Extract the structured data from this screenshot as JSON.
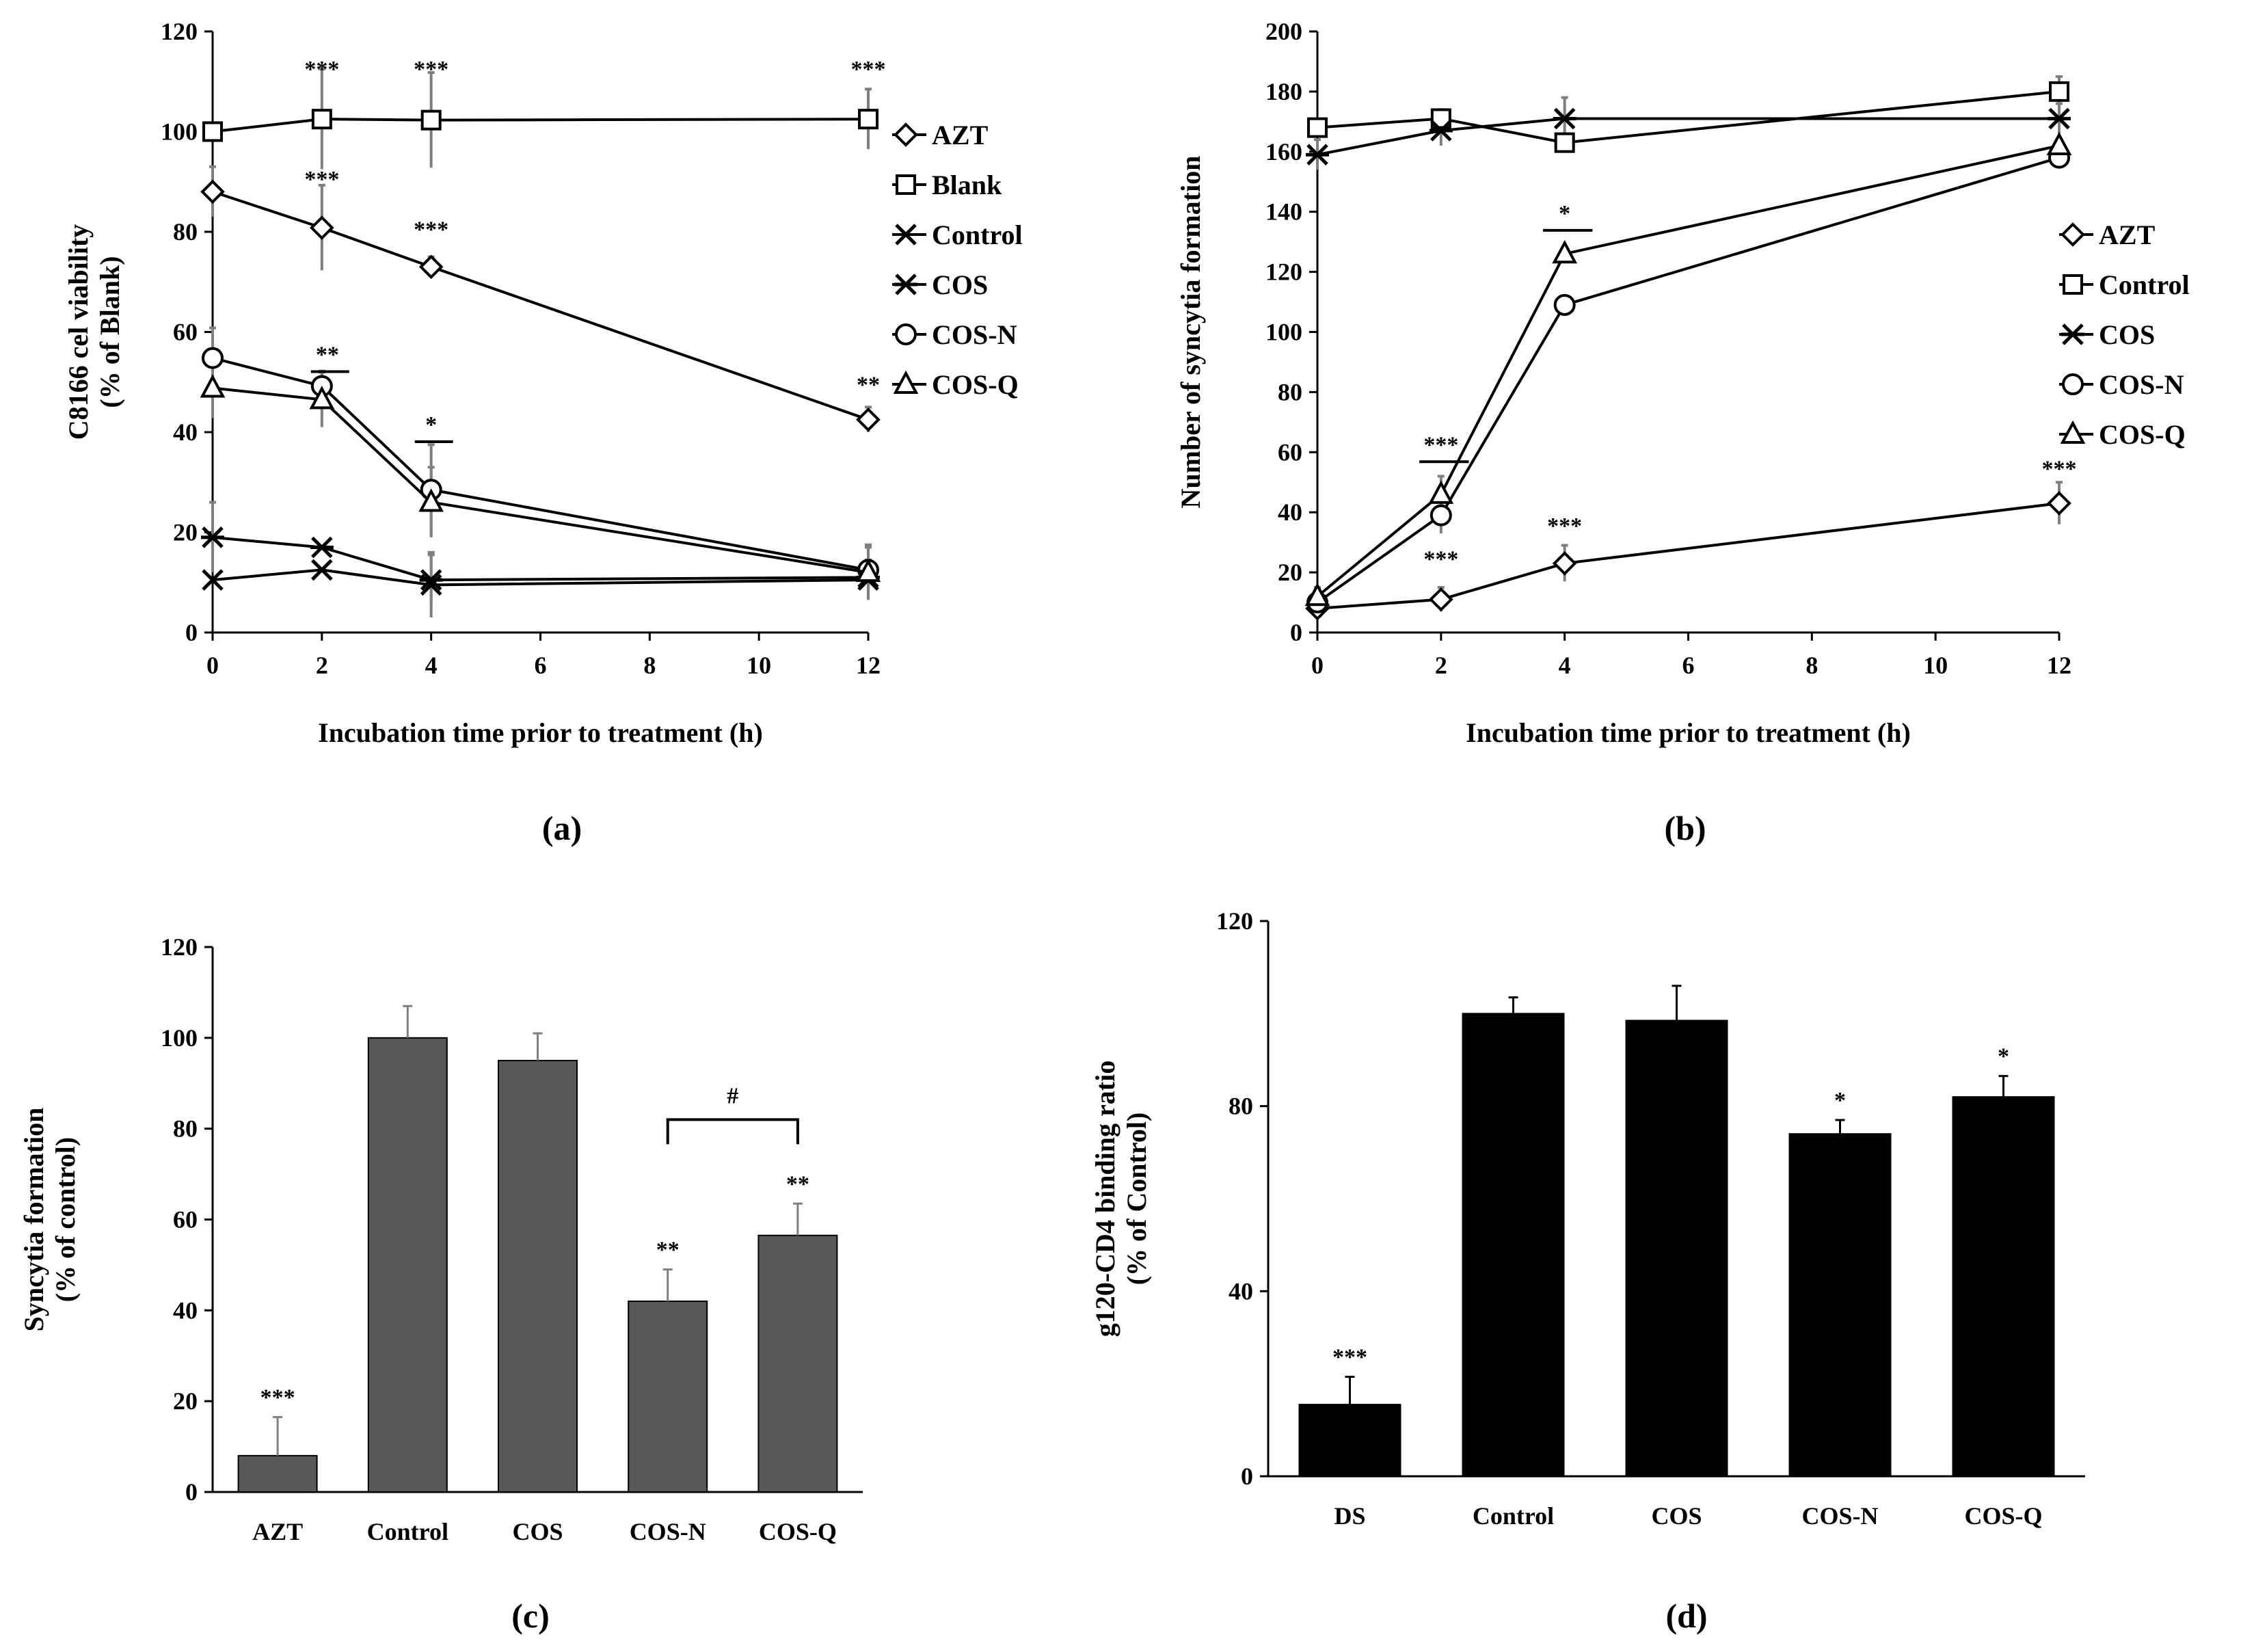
{
  "figure": {
    "colors": {
      "ink": "#000000",
      "bar_gray": "#595959",
      "bar_black": "#000000",
      "error_bar": "#7f7f7f"
    }
  },
  "chart_data": [
    {
      "id": "a",
      "panel_label": "(a)",
      "type": "line",
      "xlabel": "Incubation time prior to treatment (h)",
      "ylabel_lines": [
        "C8166 cel viability",
        "(% of Blank)"
      ],
      "xlim": [
        0,
        12
      ],
      "ylim": [
        0,
        120
      ],
      "xticks": [
        0,
        2,
        4,
        6,
        8,
        10,
        12
      ],
      "yticks": [
        0,
        20,
        40,
        60,
        80,
        100,
        120
      ],
      "x": [
        0,
        2,
        4,
        12
      ],
      "legend_position": "right",
      "series": [
        {
          "name": "AZT",
          "marker": "diamond",
          "values": [
            88,
            80.8,
            73,
            42.5
          ],
          "errors": [
            5,
            8.5,
            2,
            2.5
          ]
        },
        {
          "name": "Blank",
          "marker": "square",
          "values": [
            100,
            102.5,
            102.3,
            102.5
          ],
          "errors": [
            0,
            10,
            9.5,
            6
          ]
        },
        {
          "name": "Control",
          "marker": "x",
          "values": [
            10.5,
            12.5,
            9.5,
            10.5
          ],
          "errors": [
            0,
            0,
            6.5,
            4
          ]
        },
        {
          "name": "COS",
          "marker": "asterisk",
          "values": [
            19,
            17,
            10.5,
            11
          ],
          "errors": [
            7,
            0,
            5,
            3
          ]
        },
        {
          "name": "COS-N",
          "marker": "circle",
          "values": [
            54.8,
            49.2,
            28.5,
            12.5
          ],
          "errors": [
            6,
            3,
            9,
            5
          ]
        },
        {
          "name": "COS-Q",
          "marker": "triangle",
          "values": [
            48.8,
            46.5,
            26,
            12
          ],
          "errors": [
            6,
            5.5,
            7,
            5
          ]
        }
      ],
      "annotations": [
        {
          "text": "***",
          "x": 2,
          "y": 111,
          "bar": false
        },
        {
          "text": "***",
          "x": 4,
          "y": 111,
          "bar": false
        },
        {
          "text": "***",
          "x": 12,
          "y": 111,
          "bar": false
        },
        {
          "text": "***",
          "x": 2,
          "y": 89,
          "bar": false
        },
        {
          "text": "***",
          "x": 4,
          "y": 79,
          "bar": false
        },
        {
          "text": "**",
          "x": 12,
          "y": 48,
          "bar": false
        },
        {
          "text": "**",
          "x": 2.1,
          "y": 54,
          "bar": true,
          "x1": 1.8,
          "x2": 2.5
        },
        {
          "text": "*",
          "x": 4,
          "y": 40,
          "bar": true,
          "x1": 3.7,
          "x2": 4.4
        }
      ]
    },
    {
      "id": "b",
      "panel_label": "(b)",
      "type": "line",
      "xlabel": "Incubation time prior to treatment (h)",
      "ylabel_lines": [
        "Number of syncytia formation"
      ],
      "xlim": [
        0,
        12
      ],
      "ylim": [
        0,
        200
      ],
      "xticks": [
        0,
        2,
        4,
        6,
        8,
        10,
        12
      ],
      "yticks": [
        0,
        20,
        40,
        60,
        80,
        100,
        120,
        140,
        160,
        180,
        200
      ],
      "x": [
        0,
        2,
        4,
        12
      ],
      "legend_position": "right",
      "series": [
        {
          "name": "AZT",
          "marker": "diamond",
          "values": [
            8,
            11,
            23,
            43
          ],
          "errors": [
            2,
            4,
            6,
            7
          ]
        },
        {
          "name": "Control",
          "marker": "square",
          "values": [
            168,
            171,
            163,
            180
          ],
          "errors": [
            0,
            3,
            0,
            5
          ]
        },
        {
          "name": "COS",
          "marker": "asterisk",
          "values": [
            159,
            167,
            171,
            171
          ],
          "errors": [
            5,
            5,
            7,
            5
          ]
        },
        {
          "name": "COS-N",
          "marker": "circle",
          "values": [
            10,
            39,
            109,
            158
          ],
          "errors": [
            3,
            6,
            0,
            0
          ]
        },
        {
          "name": "COS-Q",
          "marker": "triangle",
          "values": [
            12,
            46,
            126,
            162
          ],
          "errors": [
            3,
            6,
            0,
            0
          ]
        }
      ],
      "annotations": [
        {
          "text": "***",
          "x": 2,
          "y": 60,
          "bar": true,
          "x1": 1.65,
          "x2": 2.45
        },
        {
          "text": "*",
          "x": 4,
          "y": 137,
          "bar": true,
          "x1": 3.65,
          "x2": 4.45
        },
        {
          "text": "***",
          "x": 2,
          "y": 22,
          "bar": false
        },
        {
          "text": "***",
          "x": 4,
          "y": 33,
          "bar": false
        },
        {
          "text": "***",
          "x": 12,
          "y": 52,
          "bar": false
        }
      ]
    },
    {
      "id": "c",
      "panel_label": "(c)",
      "type": "bar",
      "ylabel_lines": [
        "Syncytia formation",
        "(% of control)"
      ],
      "categories": [
        "AZT",
        "Control",
        "COS",
        "COS-N",
        "COS-Q"
      ],
      "values": [
        8,
        100,
        95,
        42,
        56.5
      ],
      "errors": [
        8.5,
        7,
        6,
        7,
        7
      ],
      "significance": [
        "***",
        "",
        "",
        "**",
        "**"
      ],
      "bracket": {
        "from": 3,
        "to": 4,
        "y": 82,
        "text": "#"
      },
      "ylim": [
        0,
        120
      ],
      "yticks": [
        0,
        20,
        40,
        60,
        80,
        100,
        120
      ]
    },
    {
      "id": "d",
      "panel_label": "(d)",
      "type": "bar",
      "ylabel_lines": [
        "g120-CD4 binding ratio",
        "(% of Control)"
      ],
      "categories": [
        "DS",
        "Control",
        "COS",
        "COS-N",
        "COS-Q"
      ],
      "values": [
        15.5,
        100,
        98.5,
        74,
        82
      ],
      "errors": [
        6,
        3.5,
        7.5,
        3,
        4.5
      ],
      "significance": [
        "***",
        "",
        "",
        "*",
        "*"
      ],
      "ylim": [
        0,
        120
      ],
      "yticks": [
        0,
        40,
        80,
        120
      ]
    }
  ]
}
